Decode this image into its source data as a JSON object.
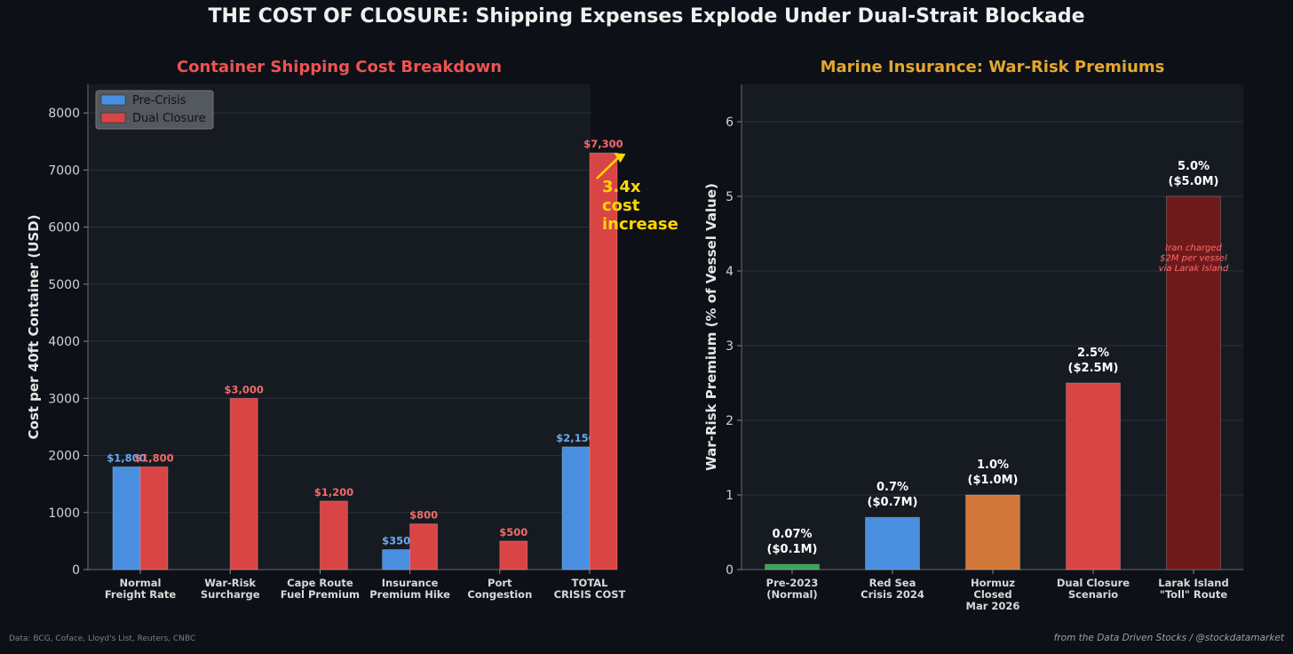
{
  "title": "THE COST OF CLOSURE: Shipping Expenses Explode Under Dual-Strait Blockade",
  "colors": {
    "pre": "#4a8fdf",
    "closure": "#d94545",
    "title_left": "#ef5350",
    "title_right": "#e3a72f",
    "annotation": "#ffd700"
  },
  "chart_data": [
    {
      "type": "bar",
      "title": "Container Shipping Cost Breakdown",
      "ylabel": "Cost per 40ft Container (USD)",
      "xlabel": "",
      "ylim": [
        0,
        8500
      ],
      "yticks": [
        0,
        1000,
        2000,
        3000,
        4000,
        5000,
        6000,
        7000,
        8000
      ],
      "categories": [
        "Normal\nFreight Rate",
        "War-Risk\nSurcharge",
        "Cape Route\nFuel Premium",
        "Insurance\nPremium Hike",
        "Port\nCongestion",
        "TOTAL\nCRISIS COST"
      ],
      "series": [
        {
          "name": "Pre-Crisis",
          "values": [
            1800,
            null,
            null,
            350,
            null,
            2150
          ],
          "labels": [
            "$1,800",
            "",
            "",
            "$350",
            "",
            "$2,150"
          ]
        },
        {
          "name": "Dual Closure",
          "values": [
            1800,
            3000,
            1200,
            800,
            500,
            7300
          ],
          "labels": [
            "$1,800",
            "$3,000",
            "$1,200",
            "$800",
            "$500",
            "$7,300"
          ]
        }
      ],
      "legend": [
        "Pre-Crisis",
        "Dual Closure"
      ],
      "legend_position": "top-left",
      "grid": true,
      "annotation": {
        "text": [
          "3.4x",
          "cost",
          "increase"
        ],
        "target_category": 5,
        "target_value": 7300
      }
    },
    {
      "type": "bar",
      "title": "Marine Insurance: War-Risk Premiums",
      "ylabel": "War-Risk Premium (% of Vessel Value)",
      "xlabel": "",
      "ylim": [
        0,
        6.5
      ],
      "yticks": [
        0,
        1,
        2,
        3,
        4,
        5,
        6
      ],
      "categories": [
        "Pre-2023\n(Normal)",
        "Red Sea\nCrisis 2024",
        "Hormuz\nClosed\nMar 2026",
        "Dual Closure\nScenario",
        "Larak Island\n\"Toll\" Route"
      ],
      "values": [
        0.07,
        0.7,
        1.0,
        2.5,
        5.0
      ],
      "labels": [
        "0.07%\n($0.1M)",
        "0.7%\n($0.7M)",
        "1.0%\n($1.0M)",
        "2.5%\n($2.5M)",
        "5.0%\n($5.0M)"
      ],
      "bar_colors": [
        "#3aa655",
        "#4a8fdf",
        "#d2773a",
        "#d94545",
        "#6e1a1a"
      ],
      "grid": true,
      "annotation": {
        "text": [
          "Iran charged",
          "$2M per vessel",
          "via Larak Island"
        ],
        "category": 4
      }
    }
  ],
  "footer": {
    "source": "Data: BCG, Coface, Lloyd's List, Reuters, CNBC",
    "credit": "from the Data Driven Stocks / @stockdatamarket"
  }
}
